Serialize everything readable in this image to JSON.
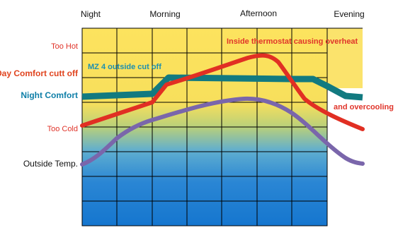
{
  "periods": [
    "Night",
    "Morning",
    "Afternoon",
    "Evening"
  ],
  "row_labels": [
    {
      "text": "Too Hot",
      "color": "#e0342a"
    },
    {
      "text": "Day Comfort cutt off",
      "color": "#e0441f"
    },
    {
      "text": "Night Comfort",
      "color": "#0f7fa8"
    },
    {
      "text": "Too Cold",
      "color": "#e0342a"
    },
    {
      "text": "Outside Temp.",
      "color": "#111111"
    }
  ],
  "annotations": {
    "mz4": "MZ 4 outside cut off",
    "overheat": "Inside thermostat causing overheat",
    "overcool": "and overcooling"
  },
  "colors": {
    "zone_top": "#fde05a",
    "zone_bottom": "#1a7ad0",
    "grid": "#000000",
    "thermostat_line": "#e12f23",
    "mz4_line": "#127a80",
    "outside_line": "#7a66ab",
    "annotation_red": "#e0342a",
    "annotation_teal": "#1d8fb0"
  }
}
